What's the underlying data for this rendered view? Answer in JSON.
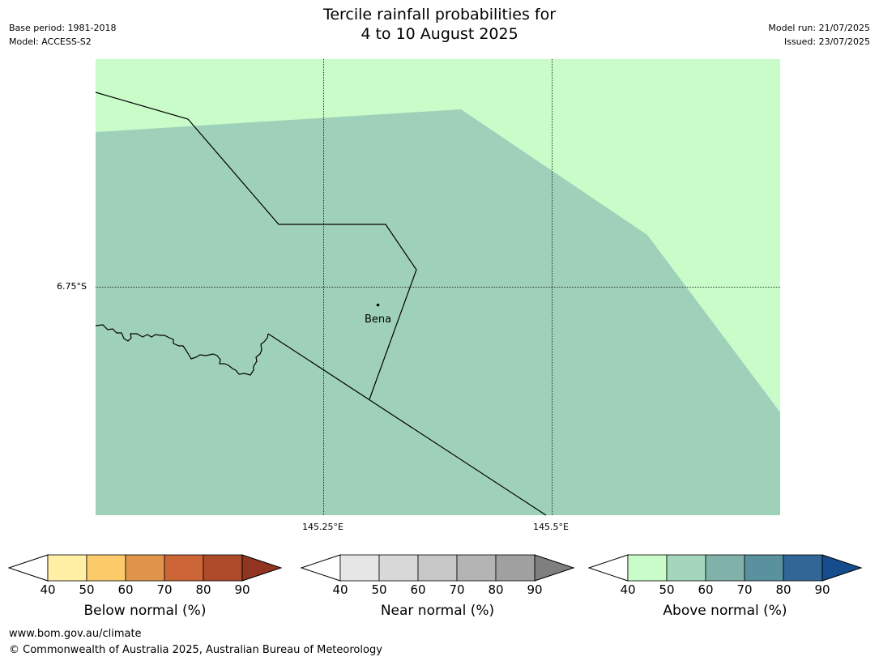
{
  "title_line1": "Tercile rainfall probabilities for",
  "title_line2": "4 to 10 August 2025",
  "meta_left": [
    "Base period: 1981-2018",
    "Model: ACCESS-S2"
  ],
  "meta_right": [
    "Model run: 21/07/2025",
    "Issued: 23/07/2025"
  ],
  "map": {
    "lat_label": "6.75°S",
    "lon_labels": [
      "145.25°E",
      "145.5°E"
    ],
    "place": "Bena",
    "colors": {
      "band_40_50_above": "#c9fcc9",
      "band_50_60_above": "#9fd1ba",
      "border": "#000000"
    }
  },
  "legends": [
    {
      "title": "Below normal (%)",
      "ticks": [
        "40",
        "50",
        "60",
        "70",
        "80",
        "90"
      ],
      "colors": [
        "#ffffff",
        "#fff0a6",
        "#fecb6a",
        "#e0954a",
        "#cd6637",
        "#ad4a2a",
        "#913520"
      ]
    },
    {
      "title": "Near normal (%)",
      "ticks": [
        "40",
        "50",
        "60",
        "70",
        "80",
        "90"
      ],
      "colors": [
        "#ffffff",
        "#e6e6e6",
        "#d8d8d8",
        "#c7c7c7",
        "#b4b4b4",
        "#a0a0a0",
        "#7f7f7f"
      ]
    },
    {
      "title": "Above normal (%)",
      "ticks": [
        "40",
        "50",
        "60",
        "70",
        "80",
        "90"
      ],
      "colors": [
        "#ffffff",
        "#c9fcc9",
        "#a3d6ba",
        "#80b2ab",
        "#5a919e",
        "#316697",
        "#154d8c"
      ]
    }
  ],
  "footer": [
    "www.bom.gov.au/climate",
    "© Commonwealth of Australia 2025, Australian Bureau of Meteorology"
  ]
}
